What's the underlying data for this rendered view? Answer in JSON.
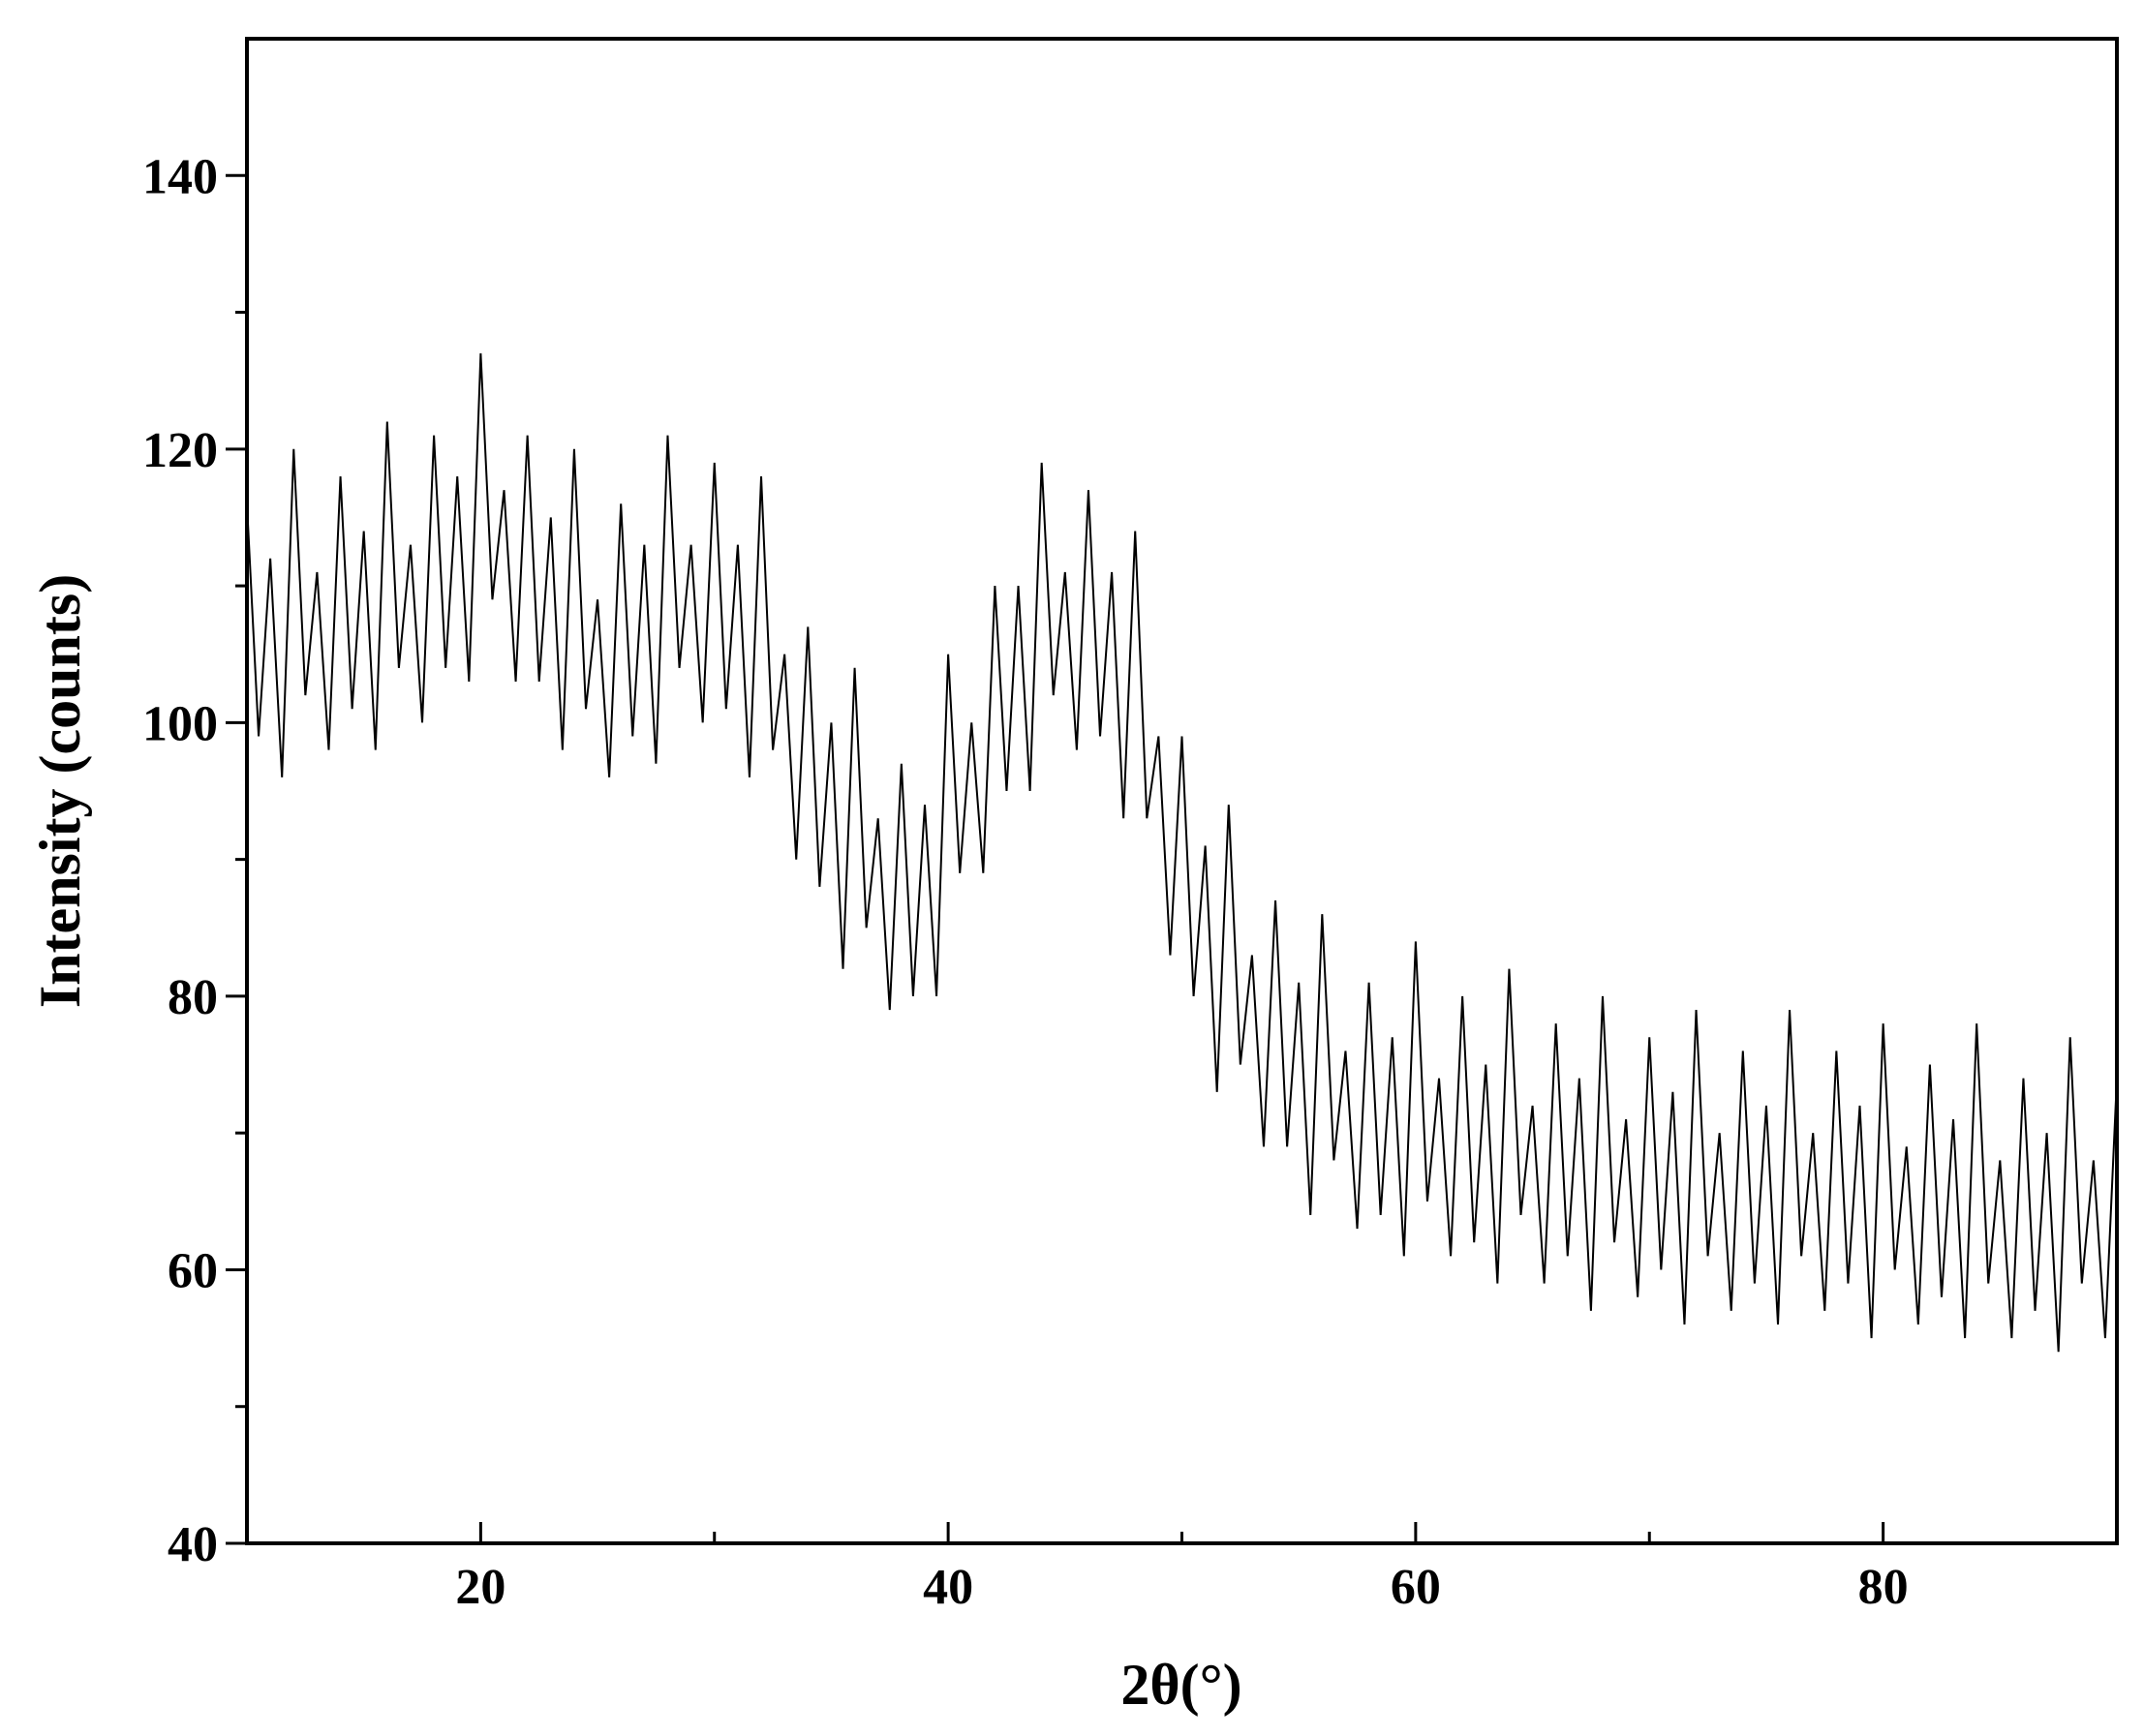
{
  "chart_data": {
    "type": "line",
    "x_label": "2θ(°)",
    "y_label": "Intensity (counts)",
    "xlim": [
      10,
      90
    ],
    "xticks": [
      20,
      40,
      60,
      80
    ],
    "x_minor_ticks": [
      30,
      50,
      70
    ],
    "ylim": [
      40,
      150
    ],
    "yticks": [
      40,
      60,
      80,
      100,
      120,
      140
    ],
    "y_minor_ticks": [
      50,
      70,
      90,
      110,
      130
    ],
    "x": [
      10,
      10.5,
      11,
      11.5,
      12,
      12.5,
      13,
      13.5,
      14,
      14.5,
      15,
      15.5,
      16,
      16.5,
      17,
      17.5,
      18,
      18.5,
      19,
      19.5,
      20,
      20.5,
      21,
      21.5,
      22,
      22.5,
      23,
      23.5,
      24,
      24.5,
      25,
      25.5,
      26,
      26.5,
      27,
      27.5,
      28,
      28.5,
      29,
      29.5,
      30,
      30.5,
      31,
      31.5,
      32,
      32.5,
      33,
      33.5,
      34,
      34.5,
      35,
      35.5,
      36,
      36.5,
      37,
      37.5,
      38,
      38.5,
      39,
      39.5,
      40,
      40.5,
      41,
      41.5,
      42,
      42.5,
      43,
      43.5,
      44,
      44.5,
      45,
      45.5,
      46,
      46.5,
      47,
      47.5,
      48,
      48.5,
      49,
      49.5,
      50,
      50.5,
      51,
      51.5,
      52,
      52.5,
      53,
      53.5,
      54,
      54.5,
      55,
      55.5,
      56,
      56.5,
      57,
      57.5,
      58,
      58.5,
      59,
      59.5,
      60,
      60.5,
      61,
      61.5,
      62,
      62.5,
      63,
      63.5,
      64,
      64.5,
      65,
      65.5,
      66,
      66.5,
      67,
      67.5,
      68,
      68.5,
      69,
      69.5,
      70,
      70.5,
      71,
      71.5,
      72,
      72.5,
      73,
      73.5,
      74,
      74.5,
      75,
      75.5,
      76,
      76.5,
      77,
      77.5,
      78,
      78.5,
      79,
      79.5,
      80,
      80.5,
      81,
      81.5,
      82,
      82.5,
      83,
      83.5,
      84,
      84.5,
      85,
      85.5,
      86,
      86.5,
      87,
      87.5,
      88,
      88.5,
      89,
      89.5,
      90
    ],
    "series": [
      {
        "color": "#000000",
        "values": [
          116,
          99,
          112,
          96,
          120,
          102,
          111,
          98,
          118,
          101,
          114,
          98,
          122,
          104,
          113,
          100,
          121,
          104,
          118,
          103,
          127,
          109,
          117,
          103,
          121,
          103,
          115,
          98,
          120,
          101,
          109,
          96,
          116,
          99,
          113,
          97,
          121,
          104,
          113,
          100,
          119,
          101,
          113,
          96,
          118,
          98,
          105,
          90,
          107,
          88,
          100,
          82,
          104,
          85,
          93,
          79,
          97,
          80,
          94,
          80,
          105,
          89,
          100,
          89,
          110,
          95,
          110,
          95,
          119,
          102,
          111,
          98,
          117,
          99,
          111,
          93,
          114,
          93,
          99,
          83,
          99,
          80,
          91,
          73,
          94,
          75,
          83,
          69,
          87,
          69,
          81,
          64,
          86,
          68,
          76,
          63,
          81,
          64,
          77,
          61,
          84,
          65,
          74,
          61,
          80,
          62,
          75,
          59,
          82,
          64,
          72,
          59,
          78,
          61,
          74,
          57,
          80,
          62,
          71,
          58,
          77,
          60,
          73,
          56,
          79,
          61,
          70,
          57,
          76,
          59,
          72,
          56,
          79,
          61,
          70,
          57,
          76,
          59,
          72,
          55,
          78,
          60,
          69,
          56,
          75,
          58,
          71,
          55,
          78,
          59,
          68,
          55,
          74,
          57,
          70,
          54,
          77,
          59,
          68,
          55,
          74
        ]
      }
    ]
  }
}
